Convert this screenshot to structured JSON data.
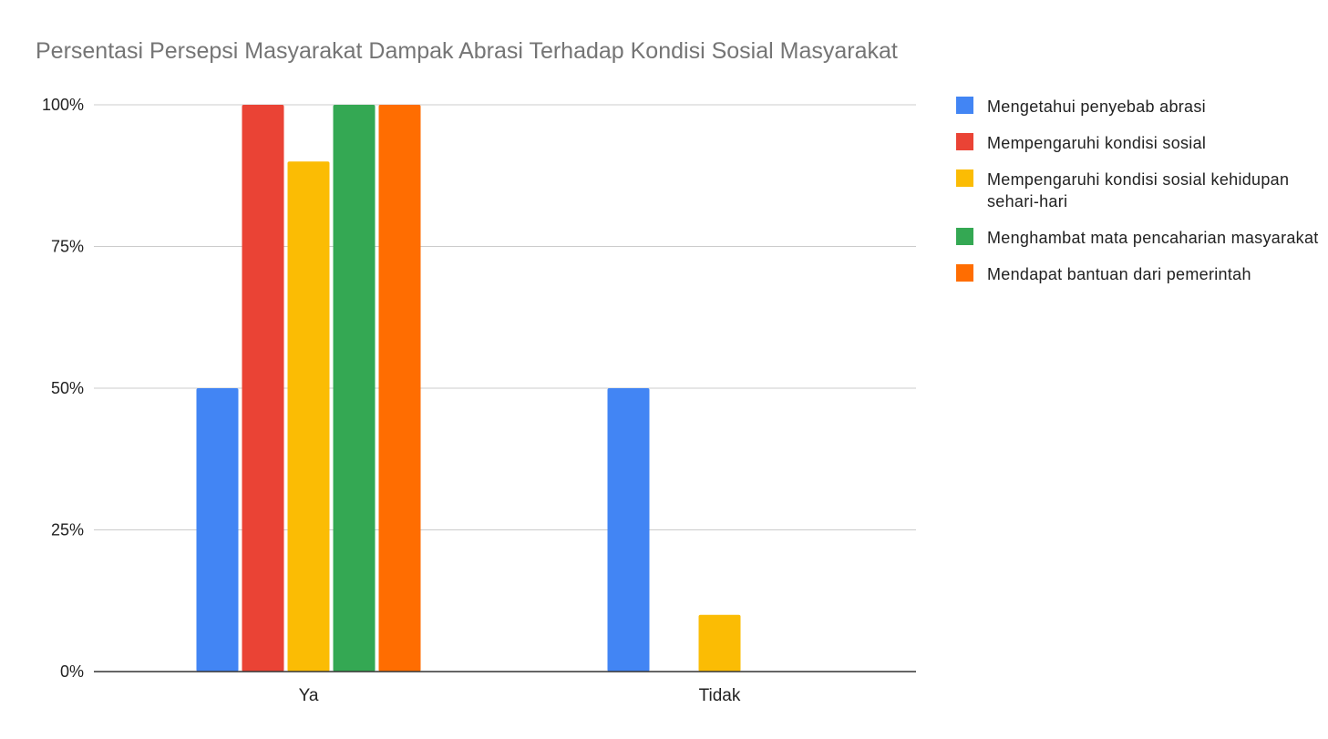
{
  "chart_data": {
    "type": "bar",
    "title": "Persentasi Persepsi Masyarakat Dampak Abrasi Terhadap Kondisi Sosial Masyarakat",
    "categories": [
      "Ya",
      "Tidak"
    ],
    "y_ticks": [
      "0%",
      "25%",
      "50%",
      "75%",
      "100%"
    ],
    "ylim": [
      0,
      100
    ],
    "grid": true,
    "legend_position": "right",
    "series": [
      {
        "name": "Mengetahui penyebab abrasi",
        "color": "#4285F4",
        "values": [
          50,
          50
        ]
      },
      {
        "name": "Mempengaruhi kondisi sosial",
        "color": "#EA4335",
        "values": [
          100,
          0
        ]
      },
      {
        "name": "Mempengaruhi kondisi sosial kehidupan sehari-hari",
        "color": "#FBBC04",
        "values": [
          90,
          10
        ]
      },
      {
        "name": "Menghambat mata pencaharian masyarakat",
        "color": "#34A853",
        "values": [
          100,
          0
        ]
      },
      {
        "name": "Mendapat bantuan dari pemerintah",
        "color": "#FF6D01",
        "values": [
          100,
          0
        ]
      }
    ]
  }
}
